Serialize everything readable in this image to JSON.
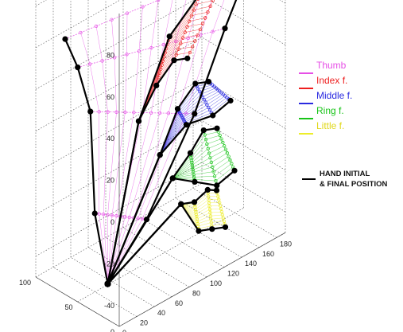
{
  "chart_data": {
    "type": "line3d",
    "title": "",
    "axes": {
      "x": {
        "ticks": [
          0,
          50,
          100
        ],
        "range": [
          0,
          100
        ]
      },
      "y": {
        "ticks": [
          0,
          20,
          40,
          60,
          80,
          100,
          120,
          140,
          160,
          180
        ],
        "range": [
          0,
          190
        ]
      },
      "z": {
        "ticks": [
          -40,
          -20,
          0,
          20,
          40,
          60,
          80
        ],
        "range": [
          -50,
          100
        ]
      }
    },
    "grid": true,
    "legend": {
      "placement": "right",
      "entries": [
        {
          "label": "Thumb",
          "color": "#e64fe6"
        },
        {
          "label": "Index f.",
          "color": "#ee1f1f"
        },
        {
          "label": "Middle f.",
          "color": "#2a2ae0"
        },
        {
          "label": "Ring f.",
          "color": "#18c418"
        },
        {
          "label": "Little f.",
          "color": "#eded2a"
        }
      ],
      "position_entry": {
        "line1": "HAND INITIAL",
        "line2": "& FINAL POSITION",
        "color": "#000000"
      }
    },
    "series": [
      {
        "name": "Thumb",
        "color": "#e64fe6",
        "initial": [
          [
            40,
            25,
            -45
          ],
          [
            45,
            15,
            -10
          ],
          [
            45,
            10,
            40
          ],
          [
            55,
            5,
            60
          ],
          [
            70,
            5,
            70
          ]
        ],
        "final": [
          [
            40,
            25,
            -45
          ],
          [
            30,
            60,
            -20
          ],
          [
            25,
            110,
            20
          ],
          [
            20,
            140,
            55
          ],
          [
            20,
            170,
            80
          ]
        ]
      },
      {
        "name": "Index f.",
        "color": "#ee1f1f",
        "initial": [
          [
            40,
            25,
            -45
          ],
          [
            50,
            70,
            20
          ],
          [
            55,
            95,
            30
          ],
          [
            60,
            120,
            35
          ],
          [
            65,
            140,
            30
          ]
        ],
        "final": [
          [
            40,
            25,
            -45
          ],
          [
            50,
            70,
            20
          ],
          [
            55,
            110,
            50
          ],
          [
            60,
            150,
            60
          ],
          [
            65,
            175,
            55
          ]
        ]
      },
      {
        "name": "Middle f.",
        "color": "#2a2ae0",
        "initial": [
          [
            40,
            25,
            -45
          ],
          [
            35,
            80,
            5
          ],
          [
            40,
            105,
            20
          ],
          [
            45,
            130,
            25
          ],
          [
            50,
            150,
            20
          ]
        ],
        "final": [
          [
            40,
            25,
            -45
          ],
          [
            35,
            80,
            5
          ],
          [
            40,
            115,
            10
          ],
          [
            45,
            150,
            5
          ],
          [
            50,
            175,
            5
          ]
        ]
      },
      {
        "name": "Ring f.",
        "color": "#18c418",
        "initial": [
          [
            40,
            25,
            -45
          ],
          [
            25,
            85,
            -5
          ],
          [
            30,
            110,
            0
          ],
          [
            35,
            130,
            5
          ],
          [
            40,
            150,
            0
          ]
        ],
        "final": [
          [
            40,
            25,
            -45
          ],
          [
            25,
            85,
            -5
          ],
          [
            30,
            115,
            -15
          ],
          [
            35,
            145,
            -25
          ],
          [
            40,
            170,
            -25
          ]
        ]
      },
      {
        "name": "Little f.",
        "color": "#eded2a",
        "initial": [
          [
            40,
            25,
            -45
          ],
          [
            15,
            85,
            -15
          ],
          [
            20,
            105,
            -20
          ],
          [
            25,
            125,
            -20
          ],
          [
            30,
            140,
            -25
          ]
        ],
        "final": [
          [
            40,
            25,
            -45
          ],
          [
            15,
            85,
            -15
          ],
          [
            20,
            110,
            -35
          ],
          [
            25,
            130,
            -40
          ],
          [
            30,
            150,
            -45
          ]
        ]
      }
    ]
  }
}
